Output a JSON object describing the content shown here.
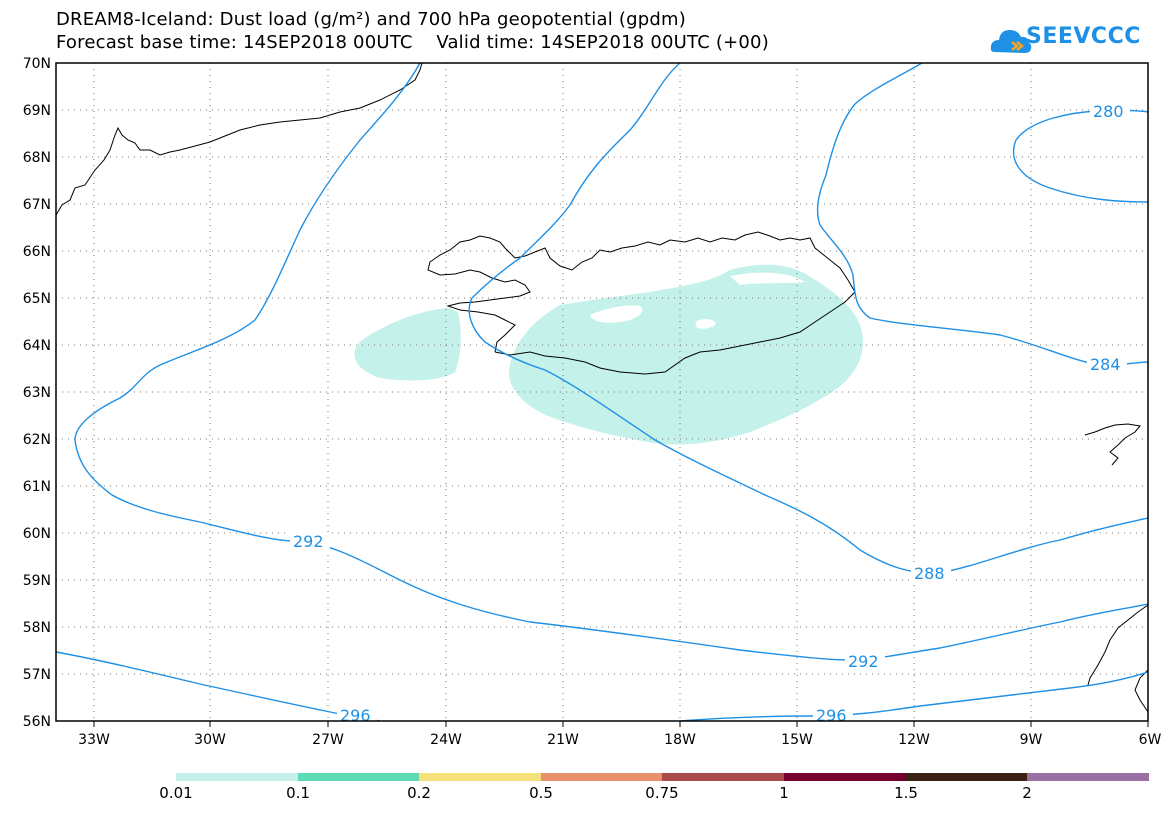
{
  "title": {
    "line1": "DREAM8-Iceland: Dust load (g/m²) and 700 hPa geopotential (gpdm)",
    "line2": "Forecast base time: 14SEP2018 00UTC    Valid time: 14SEP2018 00UTC (+00)"
  },
  "logo": {
    "text": "SEEVCCC"
  },
  "axes": {
    "lat_labels": [
      "70N",
      "69N",
      "68N",
      "67N",
      "66N",
      "65N",
      "64N",
      "63N",
      "62N",
      "61N",
      "60N",
      "59N",
      "58N",
      "57N",
      "56N"
    ],
    "lon_labels": [
      "33W",
      "30W",
      "27W",
      "24W",
      "21W",
      "18W",
      "15W",
      "12W",
      "9W",
      "6W"
    ]
  },
  "contours": {
    "labels": [
      "280",
      "284",
      "288",
      "292",
      "292",
      "296",
      "296"
    ]
  },
  "colorbar": {
    "labels": [
      "0.01",
      "0.1",
      "0.2",
      "0.5",
      "0.75",
      "1",
      "1.5",
      "2"
    ],
    "colors": [
      "#c4f1ea",
      "#5cdbb4",
      "#f4e17a",
      "#e8906c",
      "#a94b48",
      "#780030",
      "#3a2314",
      "#9b70a3"
    ]
  },
  "colors": {
    "contour": "#1e90e6",
    "dust": "#c4f1ea",
    "coast": "#000000"
  }
}
